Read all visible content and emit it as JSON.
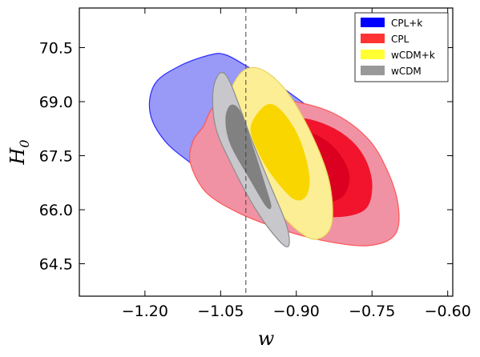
{
  "chart_data": {
    "type": "contour",
    "xlabel": "w",
    "ylabel": "H",
    "ylabel_sub": "0",
    "xlim": [
      -1.33,
      -0.59
    ],
    "ylim": [
      63.6,
      71.6
    ],
    "xticks": [
      -1.2,
      -1.05,
      -0.9,
      -0.75,
      -0.6
    ],
    "xtick_labels": [
      "−1.20",
      "−1.05",
      "−0.90",
      "−0.75",
      "−0.60"
    ],
    "yticks": [
      64.5,
      66.0,
      67.5,
      69.0,
      70.5
    ],
    "ytick_labels": [
      "64.5",
      "66.0",
      "67.5",
      "69.0",
      "70.5"
    ],
    "reference_line": {
      "x": -1.0,
      "style": "dashed"
    },
    "legend_position": "top-right",
    "series": [
      {
        "name": "CPL+k",
        "legend_color": "#0000ff",
        "contours": [
          {
            "level": "95%",
            "fill": "#9999f8",
            "edge": "#2a2aff",
            "points": [
              [
                -1.07,
                70.3
              ],
              [
                -1.04,
                70.3
              ],
              [
                -1.0,
                70.0
              ],
              [
                -0.95,
                69.6
              ],
              [
                -0.88,
                68.9
              ],
              [
                -0.8,
                68.0
              ],
              [
                -0.75,
                67.4
              ],
              [
                -0.72,
                66.8
              ],
              [
                -0.715,
                65.8
              ],
              [
                -0.73,
                65.2
              ],
              [
                -0.79,
                65.05
              ],
              [
                -0.88,
                65.4
              ],
              [
                -0.96,
                65.9
              ],
              [
                -1.03,
                66.5
              ],
              [
                -1.1,
                67.2
              ],
              [
                -1.16,
                67.9
              ],
              [
                -1.19,
                68.7
              ],
              [
                -1.18,
                69.5
              ],
              [
                -1.13,
                70.0
              ]
            ]
          }
        ]
      },
      {
        "name": "CPL",
        "legend_color": "#ff3333",
        "contours": [
          {
            "level": "95%",
            "fill": "#f092a4",
            "edge": "#ff5555",
            "points": [
              [
                -1.085,
                68.3
              ],
              [
                -1.06,
                68.9
              ],
              [
                -1.0,
                69.15
              ],
              [
                -0.92,
                69.05
              ],
              [
                -0.83,
                68.7
              ],
              [
                -0.76,
                68.0
              ],
              [
                -0.72,
                67.1
              ],
              [
                -0.698,
                66.1
              ],
              [
                -0.705,
                65.3
              ],
              [
                -0.76,
                65.0
              ],
              [
                -0.85,
                65.15
              ],
              [
                -0.94,
                65.5
              ],
              [
                -1.02,
                65.95
              ],
              [
                -1.08,
                66.5
              ],
              [
                -1.11,
                67.3
              ],
              [
                -1.105,
                67.9
              ]
            ]
          },
          {
            "level": "68%",
            "fill": "#f2142c",
            "edge": "#f2142c",
            "points": [
              [
                -0.97,
                68.4
              ],
              [
                -0.9,
                68.55
              ],
              [
                -0.84,
                68.35
              ],
              [
                -0.79,
                67.9
              ],
              [
                -0.76,
                67.3
              ],
              [
                -0.75,
                66.6
              ],
              [
                -0.765,
                66.0
              ],
              [
                -0.82,
                65.8
              ],
              [
                -0.89,
                65.95
              ],
              [
                -0.95,
                66.4
              ],
              [
                -0.985,
                67.0
              ],
              [
                -0.995,
                67.7
              ]
            ]
          },
          {
            "level": "68% inner",
            "fill": "#dc0020",
            "edge": "#dc0020",
            "points": [
              [
                -0.93,
                68.05
              ],
              [
                -0.88,
                68.15
              ],
              [
                -0.84,
                67.9
              ],
              [
                -0.81,
                67.45
              ],
              [
                -0.795,
                66.9
              ],
              [
                -0.81,
                66.35
              ],
              [
                -0.855,
                66.2
              ],
              [
                -0.905,
                66.4
              ],
              [
                -0.94,
                66.9
              ],
              [
                -0.955,
                67.5
              ]
            ]
          }
        ]
      },
      {
        "name": "wCDM+k",
        "legend_color": "#ffff33",
        "contours": [
          {
            "level": "95%",
            "fill": "#fbee95",
            "edge": "#e8d35a",
            "points": [
              [
                -1.04,
                68.9
              ],
              [
                -1.01,
                69.8
              ],
              [
                -0.97,
                69.9
              ],
              [
                -0.92,
                69.3
              ],
              [
                -0.87,
                68.1
              ],
              [
                -0.835,
                66.8
              ],
              [
                -0.83,
                65.6
              ],
              [
                -0.86,
                65.18
              ],
              [
                -0.9,
                65.45
              ],
              [
                -0.95,
                66.2
              ],
              [
                -1.0,
                67.1
              ],
              [
                -1.035,
                68.0
              ]
            ]
          },
          {
            "level": "68%",
            "fill": "#fad600",
            "edge": "#fad600",
            "points": [
              [
                -0.99,
                68.3
              ],
              [
                -0.96,
                68.9
              ],
              [
                -0.93,
                68.75
              ],
              [
                -0.895,
                68.0
              ],
              [
                -0.875,
                67.0
              ],
              [
                -0.88,
                66.4
              ],
              [
                -0.905,
                66.3
              ],
              [
                -0.945,
                66.9
              ],
              [
                -0.975,
                67.6
              ]
            ]
          }
        ]
      },
      {
        "name": "wCDM",
        "legend_color": "#999999",
        "contours": [
          {
            "level": "95%",
            "fill": "#c8c8cc",
            "edge": "#8c8c8c",
            "points": [
              [
                -1.065,
                69.3
              ],
              [
                -1.05,
                69.8
              ],
              [
                -1.03,
                69.5
              ],
              [
                -0.99,
                68.0
              ],
              [
                -0.955,
                66.8
              ],
              [
                -0.92,
                65.6
              ],
              [
                -0.915,
                65.0
              ],
              [
                -0.935,
                65.15
              ],
              [
                -0.98,
                66.0
              ],
              [
                -1.03,
                67.3
              ],
              [
                -1.06,
                68.3
              ]
            ]
          },
          {
            "level": "68%",
            "fill": "#818181",
            "edge": "#818181",
            "points": [
              [
                -1.04,
                68.5
              ],
              [
                -1.03,
                68.9
              ],
              [
                -1.01,
                68.7
              ],
              [
                -0.985,
                67.7
              ],
              [
                -0.96,
                66.6
              ],
              [
                -0.95,
                66.1
              ],
              [
                -0.96,
                66.1
              ],
              [
                -0.99,
                66.8
              ],
              [
                -1.03,
                67.8
              ]
            ]
          }
        ]
      }
    ]
  }
}
